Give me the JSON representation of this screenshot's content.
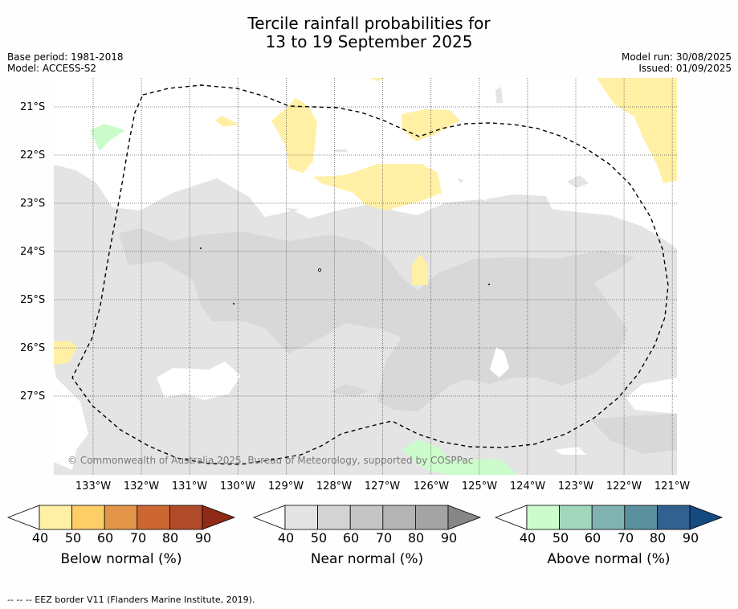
{
  "title_line1": "Tercile rainfall probabilities for",
  "title_line2": "13 to 19 September 2025",
  "base_period": "Base period: 1981-2018",
  "model": "Model: ACCESS-S2",
  "model_run": "Model run: 30/08/2025",
  "issued": "Issued: 01/09/2025",
  "latitudes": [
    "21°S",
    "22°S",
    "23°S",
    "24°S",
    "25°S",
    "26°S",
    "27°S"
  ],
  "longitudes": [
    "133°W",
    "132°W",
    "131°W",
    "130°W",
    "129°W",
    "128°W",
    "127°W",
    "126°W",
    "125°W",
    "124°W",
    "123°W",
    "122°W",
    "121°W"
  ],
  "copyright": "© Commonwealth of Australia 2025, Bureau of Meteorology, supported by COSPPac",
  "colorbars": [
    {
      "label": "Below normal (%)",
      "ticks": [
        "40",
        "50",
        "60",
        "70",
        "80",
        "90"
      ],
      "colors": [
        "#ffffff",
        "#fff0a6",
        "#fdcd66",
        "#e29548",
        "#cc6633",
        "#b14a28",
        "#8e2a16"
      ]
    },
    {
      "label": "Near normal (%)",
      "ticks": [
        "40",
        "50",
        "60",
        "70",
        "80",
        "90"
      ],
      "colors": [
        "#ffffff",
        "#e4e4e4",
        "#d4d4d4",
        "#c5c5c5",
        "#b4b4b4",
        "#a4a4a4",
        "#868686"
      ]
    },
    {
      "label": "Above normal (%)",
      "ticks": [
        "40",
        "50",
        "60",
        "70",
        "80",
        "90"
      ],
      "colors": [
        "#ffffff",
        "#ccfccc",
        "#a2d6bc",
        "#80b2b1",
        "#5a8f9e",
        "#32608f",
        "#154a80"
      ]
    }
  ],
  "footnote": "--  --  -- EEZ border V11 (Flanders Marine Institute, 2019)."
}
